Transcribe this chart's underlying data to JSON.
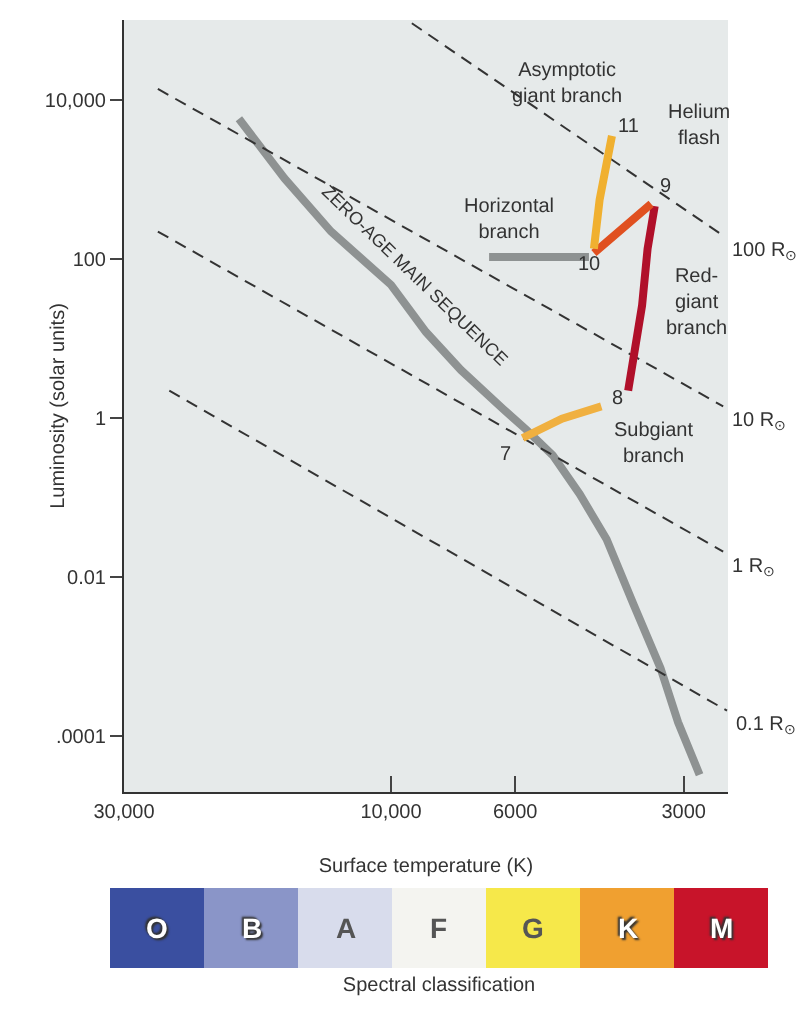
{
  "chart_data": [
    {
      "type": "line",
      "xlabel": "Surface temperature (K)",
      "ylabel": "Luminosity (solar units)",
      "log": "xy",
      "grid": false,
      "legend": false,
      "marker": "none",
      "xlim": [
        30000,
        2500
      ],
      "ylim": [
        2e-05,
        100000
      ],
      "xticks": [
        {
          "value": 30000,
          "label": "30,000"
        },
        {
          "value": 10000,
          "label": "10,000"
        },
        6000,
        3000
      ],
      "yticks": [
        {
          "value": 10000,
          "label": "10,000"
        },
        100,
        1,
        0.01,
        {
          "value": 0.0001,
          "label": ".0001"
        }
      ],
      "series": [
        {
          "color": "#8e9292",
          "line_style": "solid",
          "x": [
            18700,
            15500,
            12800,
            10000,
            8660,
            7500,
            6310,
            5740,
            5140,
            4600,
            4120,
            3690,
            3300,
            3070,
            2810
          ],
          "values": [
            5750,
            1020,
            220,
            47,
            12,
            4,
            1.3,
            0.72,
            0.34,
            0.11,
            0.03,
            0.0046,
            0.00072,
            0.00015,
            3.3e-05
          ]
        },
        {
          "name": "100 R$_{⊙}$",
          "color": "#333333",
          "line_style": "dashed",
          "x": [
            9180,
            2550
          ],
          "values": [
            91000,
            195
          ]
        },
        {
          "name": "10 R$_{⊙}$",
          "color": "#333333",
          "line_style": "dashed",
          "x": [
            26100,
            2550
          ],
          "values": [
            13600,
            1.4
          ]
        },
        {
          "name": "1 R$_{⊙}$",
          "color": "#333333",
          "line_style": "dashed",
          "x": [
            26100,
            2550
          ],
          "values": [
            220,
            0.021
          ]
        },
        {
          "name": "0.1 R$_{⊙}$",
          "color": "#333333",
          "line_style": "dashed",
          "x": [
            24900,
            2510
          ],
          "values": [
            2.2,
            0.00021
          ]
        },
        {
          "color": "#8e9292",
          "line_style": "solid",
          "x": [
            6680,
            4430
          ],
          "values": [
            105,
            105
          ]
        },
        {
          "color": "#f0b040",
          "line_style": "solid",
          "x": [
            5820,
            4950,
            4210
          ],
          "values": [
            0.56,
            0.98,
            1.4
          ]
        },
        {
          "color": "#b0102a",
          "line_style": "solid",
          "x": [
            3770,
            3560,
            3480,
            3380
          ],
          "values": [
            2.2,
            26,
            134,
            460
          ]
        },
        {
          "color": "#e05020",
          "line_style": "solid",
          "x": [
            3430,
            4120,
            4340
          ],
          "values": [
            490,
            162,
            118
          ]
        },
        {
          "color": "#f0b030",
          "line_style": "solid",
          "x": [
            4340,
            4240,
            4030
          ],
          "values": [
            134,
            550,
            3500
          ]
        }
      ],
      "annotations": [
        "ZERO-AGE MAIN SEQUENCE",
        "Asymptotic\ngiant branch",
        "Horizontal\nbranch",
        "Helium\nflash",
        "Red-\ngiant\nbranch",
        "Subgiant\nbranch",
        {
          "text": "7",
          "x": 5820,
          "y": 0.56
        },
        {
          "text": "8",
          "x": 4210,
          "y": 1.4
        },
        {
          "text": "9",
          "x": 3380,
          "y": 460
        },
        {
          "text": "10",
          "x": 4340,
          "y": 118
        },
        {
          "text": "11",
          "x": 4030,
          "y": 3500
        }
      ]
    },
    {
      "type": "other",
      "xlabel": "Spectral classification",
      "categories": [
        "O",
        "B",
        "A",
        "F",
        "G",
        "K",
        "M"
      ],
      "colors": [
        "#3a4fa0",
        "#8a95c8",
        "#d8dcec",
        "#f4f4f0",
        "#f6e84a",
        "#f0a030",
        "#c8142a"
      ]
    }
  ]
}
